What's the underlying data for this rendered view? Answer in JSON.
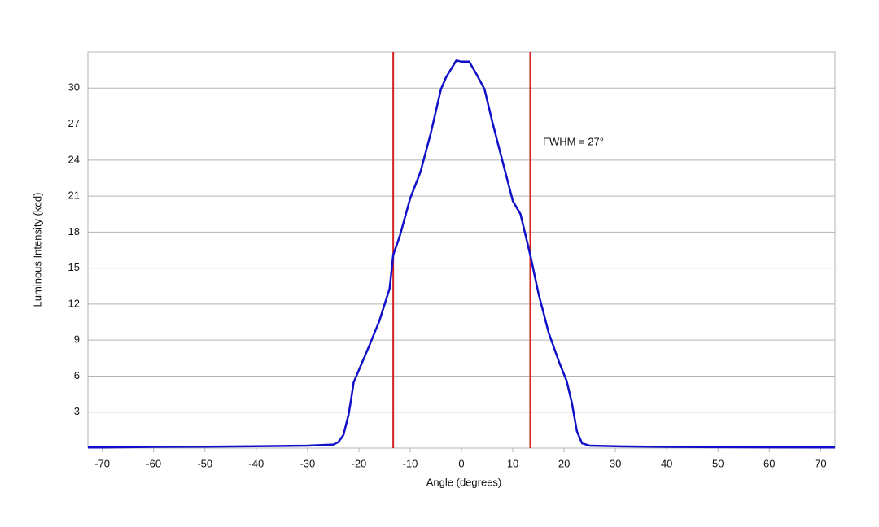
{
  "chart_data": {
    "type": "line",
    "x_label": "Angle (degrees)",
    "y_label": "Luminous Intensity (kcd)",
    "annotation": "FWHM = 27°",
    "color": "#1010c8",
    "x": [
      -72.8,
      -70,
      -60,
      -50,
      -40,
      -30,
      -25,
      -24,
      -23,
      -22,
      -21.5,
      -21,
      -20,
      -18,
      -16,
      -14,
      -13.3,
      -12,
      -10,
      -8,
      -6,
      -4,
      -3,
      -1,
      0,
      1.5,
      3,
      4.5,
      6,
      8,
      10,
      11.5,
      13.4,
      15,
      17,
      19,
      20.5,
      21.5,
      22.5,
      23.5,
      25,
      30,
      40,
      50,
      60,
      70,
      72.8
    ],
    "values": [
      0.05,
      0.05,
      0.1,
      0.12,
      0.15,
      0.2,
      0.3,
      0.5,
      1.1,
      2.8,
      4.1,
      5.5,
      6.5,
      8.5,
      10.6,
      13.3,
      16.1,
      17.7,
      20.8,
      23,
      26.2,
      29.9,
      30.9,
      32.3,
      32.2,
      32.2,
      31.1,
      29.9,
      27.2,
      23.9,
      20.6,
      19.5,
      16.1,
      12.9,
      9.6,
      7.2,
      5.6,
      3.8,
      1.4,
      0.4,
      0.2,
      0.15,
      0.1,
      0.08,
      0.06,
      0.05,
      0.05
    ],
    "vlines": [
      {
        "x": -13.3,
        "color": "#d42020"
      },
      {
        "x": 13.4,
        "color": "#d42020"
      }
    ],
    "xlim": [
      -72.8,
      72.8
    ],
    "xticks": [
      -70,
      -60,
      -50,
      -40,
      -30,
      -20,
      -10,
      0,
      10,
      20,
      30,
      40,
      50,
      60,
      70
    ],
    "ylim": [
      0,
      33
    ],
    "yticks": [
      3,
      6,
      9,
      12,
      15,
      18,
      21,
      24,
      27,
      30
    ],
    "grid": true
  }
}
